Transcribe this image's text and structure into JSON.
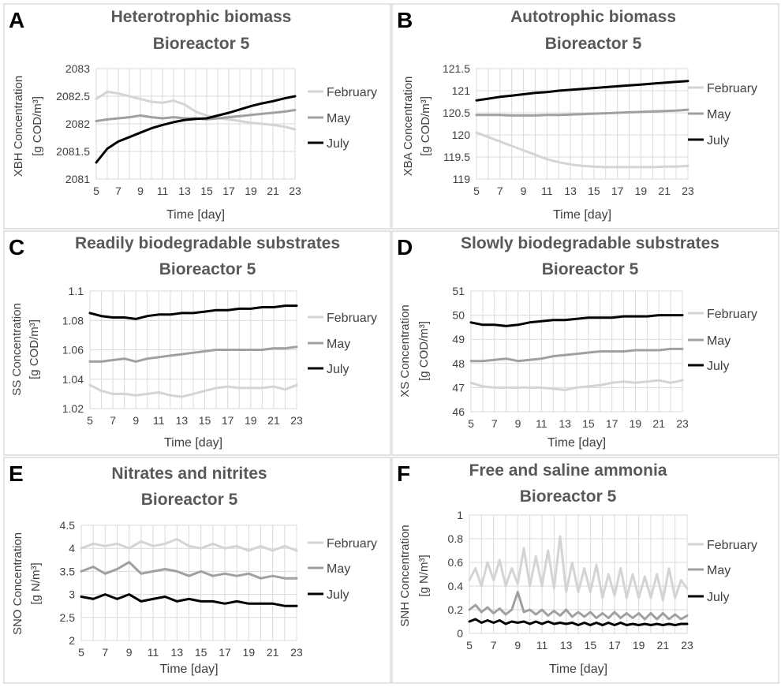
{
  "colors": {
    "February": "#d4d4d4",
    "May": "#a0a0a0",
    "July": "#000000",
    "title": "#595959",
    "axis_text": "#404040",
    "grid": "#d9d9d9",
    "panel_border": "#c8c8c8"
  },
  "chart_data": [
    {
      "panel": "A",
      "type": "line",
      "title": "Heterotrophic biomass",
      "subtitle": "Bioreactor 5",
      "ylabel_line1": "XBH Concentration",
      "ylabel_line2": "[g COD/m³]",
      "xlabel": "Time [day]",
      "xlim": [
        5,
        23
      ],
      "ylim": [
        2081,
        2083
      ],
      "xticks": [
        "5",
        "7",
        "9",
        "11",
        "13",
        "15",
        "17",
        "19",
        "21",
        "23"
      ],
      "yticks": [
        "2081",
        "2081.5",
        "2082",
        "2082.5",
        "2083"
      ],
      "legend": "right",
      "series": [
        {
          "name": "February",
          "x": [
            5,
            6,
            7,
            8,
            9,
            10,
            11,
            12,
            13,
            14,
            15,
            16,
            17,
            18,
            19,
            20,
            21,
            22,
            23
          ],
          "y": [
            2082.45,
            2082.58,
            2082.55,
            2082.5,
            2082.45,
            2082.4,
            2082.38,
            2082.42,
            2082.35,
            2082.22,
            2082.15,
            2082.1,
            2082.08,
            2082.05,
            2082.02,
            2082.0,
            2081.98,
            2081.95,
            2081.9
          ]
        },
        {
          "name": "May",
          "x": [
            5,
            6,
            7,
            8,
            9,
            10,
            11,
            12,
            13,
            14,
            15,
            16,
            17,
            18,
            19,
            20,
            21,
            22,
            23
          ],
          "y": [
            2082.05,
            2082.08,
            2082.1,
            2082.12,
            2082.15,
            2082.12,
            2082.1,
            2082.12,
            2082.1,
            2082.1,
            2082.08,
            2082.1,
            2082.12,
            2082.14,
            2082.16,
            2082.18,
            2082.2,
            2082.22,
            2082.25
          ]
        },
        {
          "name": "July",
          "x": [
            5,
            6,
            7,
            8,
            9,
            10,
            11,
            12,
            13,
            14,
            15,
            16,
            17,
            18,
            19,
            20,
            21,
            22,
            23
          ],
          "y": [
            2081.3,
            2081.55,
            2081.68,
            2081.76,
            2081.84,
            2081.92,
            2081.98,
            2082.03,
            2082.07,
            2082.09,
            2082.1,
            2082.15,
            2082.2,
            2082.26,
            2082.32,
            2082.37,
            2082.41,
            2082.46,
            2082.5
          ]
        }
      ]
    },
    {
      "panel": "B",
      "type": "line",
      "title": "Autotrophic biomass",
      "subtitle": "Bioreactor 5",
      "ylabel_line1": "XBA Concentration",
      "ylabel_line2": "[g COD/m³]",
      "xlabel": "Time [day]",
      "xlim": [
        5,
        23
      ],
      "ylim": [
        119,
        121.5
      ],
      "xticks": [
        "5",
        "7",
        "9",
        "11",
        "13",
        "15",
        "17",
        "19",
        "21",
        "23"
      ],
      "yticks": [
        "119",
        "119.5",
        "120",
        "120.5",
        "121",
        "121.5"
      ],
      "legend": "right",
      "series": [
        {
          "name": "February",
          "x": [
            5,
            6,
            7,
            8,
            9,
            10,
            11,
            12,
            13,
            14,
            15,
            16,
            17,
            18,
            19,
            20,
            21,
            22,
            23
          ],
          "y": [
            120.05,
            119.95,
            119.85,
            119.75,
            119.65,
            119.55,
            119.45,
            119.38,
            119.33,
            119.3,
            119.28,
            119.27,
            119.27,
            119.27,
            119.27,
            119.27,
            119.28,
            119.28,
            119.3
          ]
        },
        {
          "name": "May",
          "x": [
            5,
            6,
            7,
            8,
            9,
            10,
            11,
            12,
            13,
            14,
            15,
            16,
            17,
            18,
            19,
            20,
            21,
            22,
            23
          ],
          "y": [
            120.45,
            120.45,
            120.45,
            120.44,
            120.44,
            120.44,
            120.45,
            120.45,
            120.46,
            120.47,
            120.48,
            120.49,
            120.5,
            120.51,
            120.52,
            120.53,
            120.54,
            120.55,
            120.57
          ]
        },
        {
          "name": "July",
          "x": [
            5,
            6,
            7,
            8,
            9,
            10,
            11,
            12,
            13,
            14,
            15,
            16,
            17,
            18,
            19,
            20,
            21,
            22,
            23
          ],
          "y": [
            120.78,
            120.82,
            120.86,
            120.89,
            120.92,
            120.95,
            120.97,
            121.0,
            121.02,
            121.04,
            121.06,
            121.08,
            121.1,
            121.12,
            121.14,
            121.16,
            121.18,
            121.2,
            121.22
          ]
        }
      ]
    },
    {
      "panel": "C",
      "type": "line",
      "title": "Readily biodegradable substrates",
      "subtitle": "Bioreactor 5",
      "ylabel_line1": "SS Concentration",
      "ylabel_line2": "[g COD/m³]",
      "xlabel": "Time [day]",
      "xlim": [
        5,
        23
      ],
      "ylim": [
        1.02,
        1.1
      ],
      "xticks": [
        "5",
        "7",
        "9",
        "11",
        "13",
        "15",
        "17",
        "19",
        "21",
        "23"
      ],
      "yticks": [
        "1.02",
        "1.04",
        "1.06",
        "1.08",
        "1.1"
      ],
      "legend": "right",
      "series": [
        {
          "name": "February",
          "x": [
            5,
            6,
            7,
            8,
            9,
            10,
            11,
            12,
            13,
            14,
            15,
            16,
            17,
            18,
            19,
            20,
            21,
            22,
            23
          ],
          "y": [
            1.036,
            1.032,
            1.03,
            1.03,
            1.029,
            1.03,
            1.031,
            1.029,
            1.028,
            1.03,
            1.032,
            1.034,
            1.035,
            1.034,
            1.034,
            1.034,
            1.035,
            1.033,
            1.036
          ]
        },
        {
          "name": "May",
          "x": [
            5,
            6,
            7,
            8,
            9,
            10,
            11,
            12,
            13,
            14,
            15,
            16,
            17,
            18,
            19,
            20,
            21,
            22,
            23
          ],
          "y": [
            1.052,
            1.052,
            1.053,
            1.054,
            1.052,
            1.054,
            1.055,
            1.056,
            1.057,
            1.058,
            1.059,
            1.06,
            1.06,
            1.06,
            1.06,
            1.06,
            1.061,
            1.061,
            1.062
          ]
        },
        {
          "name": "July",
          "x": [
            5,
            6,
            7,
            8,
            9,
            10,
            11,
            12,
            13,
            14,
            15,
            16,
            17,
            18,
            19,
            20,
            21,
            22,
            23
          ],
          "y": [
            1.085,
            1.083,
            1.082,
            1.082,
            1.081,
            1.083,
            1.084,
            1.084,
            1.085,
            1.085,
            1.086,
            1.087,
            1.087,
            1.088,
            1.088,
            1.089,
            1.089,
            1.09,
            1.09
          ]
        }
      ]
    },
    {
      "panel": "D",
      "type": "line",
      "title": "Slowly biodegradable substrates",
      "subtitle": "Bioreactor 5",
      "ylabel_line1": "XS Concentration",
      "ylabel_line2": "[g COD/m³]",
      "xlabel": "Time [day]",
      "xlim": [
        5,
        23
      ],
      "ylim": [
        46,
        51
      ],
      "xticks": [
        "5",
        "7",
        "9",
        "11",
        "13",
        "15",
        "17",
        "19",
        "21",
        "23"
      ],
      "yticks": [
        "46",
        "47",
        "48",
        "49",
        "50",
        "51"
      ],
      "legend": "right",
      "series": [
        {
          "name": "February",
          "x": [
            5,
            6,
            7,
            8,
            9,
            10,
            11,
            12,
            13,
            14,
            15,
            16,
            17,
            18,
            19,
            20,
            21,
            22,
            23
          ],
          "y": [
            47.2,
            47.05,
            47.0,
            47.0,
            47.0,
            47.0,
            47.0,
            46.95,
            46.9,
            47.0,
            47.05,
            47.1,
            47.2,
            47.25,
            47.2,
            47.25,
            47.3,
            47.2,
            47.3
          ]
        },
        {
          "name": "May",
          "x": [
            5,
            6,
            7,
            8,
            9,
            10,
            11,
            12,
            13,
            14,
            15,
            16,
            17,
            18,
            19,
            20,
            21,
            22,
            23
          ],
          "y": [
            48.1,
            48.1,
            48.15,
            48.2,
            48.1,
            48.15,
            48.2,
            48.3,
            48.35,
            48.4,
            48.45,
            48.5,
            48.5,
            48.5,
            48.55,
            48.55,
            48.55,
            48.6,
            48.6
          ]
        },
        {
          "name": "July",
          "x": [
            5,
            6,
            7,
            8,
            9,
            10,
            11,
            12,
            13,
            14,
            15,
            16,
            17,
            18,
            19,
            20,
            21,
            22,
            23
          ],
          "y": [
            49.7,
            49.6,
            49.6,
            49.55,
            49.6,
            49.7,
            49.75,
            49.8,
            49.8,
            49.85,
            49.9,
            49.9,
            49.9,
            49.95,
            49.95,
            49.95,
            50.0,
            50.0,
            50.0
          ]
        }
      ]
    },
    {
      "panel": "E",
      "type": "line",
      "title": "Nitrates and nitrites",
      "subtitle": "Bioreactor 5",
      "ylabel_line1": "SNO Concentration",
      "ylabel_line2": "[g N/m³]",
      "xlabel": "Time [day]",
      "xlim": [
        5,
        23
      ],
      "ylim": [
        2,
        4.5
      ],
      "xticks": [
        "5",
        "7",
        "9",
        "11",
        "13",
        "15",
        "17",
        "19",
        "21",
        "23"
      ],
      "yticks": [
        "2",
        "2.5",
        "3",
        "3.5",
        "4",
        "4.5"
      ],
      "legend": "right",
      "series": [
        {
          "name": "February",
          "x": [
            5,
            6,
            7,
            8,
            9,
            10,
            11,
            12,
            13,
            14,
            15,
            16,
            17,
            18,
            19,
            20,
            21,
            22,
            23
          ],
          "y": [
            4.0,
            4.1,
            4.05,
            4.1,
            4.0,
            4.15,
            4.05,
            4.1,
            4.2,
            4.05,
            4.0,
            4.1,
            4.0,
            4.05,
            3.95,
            4.05,
            3.95,
            4.05,
            3.95
          ]
        },
        {
          "name": "May",
          "x": [
            5,
            6,
            7,
            8,
            9,
            10,
            11,
            12,
            13,
            14,
            15,
            16,
            17,
            18,
            19,
            20,
            21,
            22,
            23
          ],
          "y": [
            3.5,
            3.6,
            3.45,
            3.55,
            3.7,
            3.45,
            3.5,
            3.55,
            3.5,
            3.4,
            3.5,
            3.4,
            3.45,
            3.4,
            3.45,
            3.35,
            3.4,
            3.35,
            3.35
          ]
        },
        {
          "name": "July",
          "x": [
            5,
            6,
            7,
            8,
            9,
            10,
            11,
            12,
            13,
            14,
            15,
            16,
            17,
            18,
            19,
            20,
            21,
            22,
            23
          ],
          "y": [
            2.95,
            2.9,
            3.0,
            2.9,
            3.0,
            2.85,
            2.9,
            2.95,
            2.85,
            2.9,
            2.85,
            2.85,
            2.8,
            2.85,
            2.8,
            2.8,
            2.8,
            2.75,
            2.75
          ]
        }
      ]
    },
    {
      "panel": "F",
      "type": "line",
      "title": "Free and saline ammonia",
      "subtitle": "Bioreactor 5",
      "ylabel_line1": "SNH Concentration",
      "ylabel_line2": "[g N/m³]",
      "xlabel": "Time [day]",
      "xlim": [
        5,
        23
      ],
      "ylim": [
        0,
        1
      ],
      "xticks": [
        "5",
        "7",
        "9",
        "11",
        "13",
        "15",
        "17",
        "19",
        "21",
        "23"
      ],
      "yticks": [
        "0",
        "0.2",
        "0.4",
        "0.6",
        "0.8",
        "1"
      ],
      "legend": "right",
      "series": [
        {
          "name": "February",
          "x": [
            5,
            5.5,
            6,
            6.5,
            7,
            7.5,
            8,
            8.5,
            9,
            9.5,
            10,
            10.5,
            11,
            11.5,
            12,
            12.5,
            13,
            13.5,
            14,
            14.5,
            15,
            15.5,
            16,
            16.5,
            17,
            17.5,
            18,
            18.5,
            19,
            19.5,
            20,
            20.5,
            21,
            21.5,
            22,
            22.5,
            23
          ],
          "y": [
            0.45,
            0.55,
            0.4,
            0.6,
            0.45,
            0.62,
            0.4,
            0.55,
            0.42,
            0.72,
            0.4,
            0.65,
            0.4,
            0.7,
            0.38,
            0.82,
            0.35,
            0.6,
            0.35,
            0.55,
            0.35,
            0.58,
            0.3,
            0.5,
            0.32,
            0.55,
            0.3,
            0.5,
            0.3,
            0.48,
            0.3,
            0.5,
            0.28,
            0.55,
            0.3,
            0.45,
            0.38
          ]
        },
        {
          "name": "May",
          "x": [
            5,
            5.5,
            6,
            6.5,
            7,
            7.5,
            8,
            8.5,
            9,
            9.5,
            10,
            10.5,
            11,
            11.5,
            12,
            12.5,
            13,
            13.5,
            14,
            14.5,
            15,
            15.5,
            16,
            16.5,
            17,
            17.5,
            18,
            18.5,
            19,
            19.5,
            20,
            20.5,
            21,
            21.5,
            22,
            22.5,
            23
          ],
          "y": [
            0.2,
            0.24,
            0.18,
            0.22,
            0.17,
            0.21,
            0.16,
            0.2,
            0.35,
            0.18,
            0.2,
            0.16,
            0.2,
            0.15,
            0.19,
            0.15,
            0.2,
            0.14,
            0.18,
            0.14,
            0.18,
            0.13,
            0.17,
            0.13,
            0.18,
            0.13,
            0.17,
            0.13,
            0.17,
            0.12,
            0.17,
            0.12,
            0.17,
            0.12,
            0.16,
            0.12,
            0.15
          ]
        },
        {
          "name": "July",
          "x": [
            5,
            5.5,
            6,
            6.5,
            7,
            7.5,
            8,
            8.5,
            9,
            9.5,
            10,
            10.5,
            11,
            11.5,
            12,
            12.5,
            13,
            13.5,
            14,
            14.5,
            15,
            15.5,
            16,
            16.5,
            17,
            17.5,
            18,
            18.5,
            19,
            19.5,
            20,
            20.5,
            21,
            21.5,
            22,
            22.5,
            23
          ],
          "y": [
            0.1,
            0.12,
            0.09,
            0.11,
            0.09,
            0.11,
            0.08,
            0.1,
            0.09,
            0.1,
            0.08,
            0.1,
            0.08,
            0.1,
            0.08,
            0.09,
            0.08,
            0.09,
            0.07,
            0.09,
            0.07,
            0.09,
            0.07,
            0.09,
            0.07,
            0.09,
            0.07,
            0.08,
            0.07,
            0.08,
            0.07,
            0.08,
            0.07,
            0.08,
            0.07,
            0.08,
            0.08
          ]
        }
      ]
    }
  ]
}
